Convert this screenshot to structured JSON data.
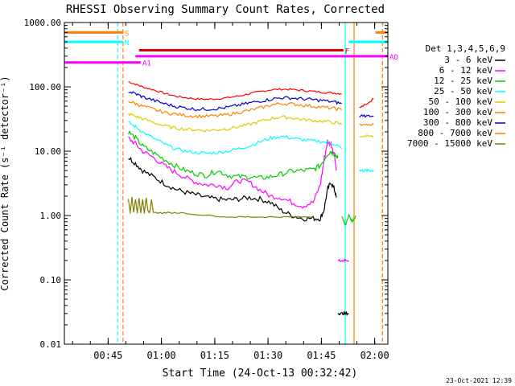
{
  "chart_data": {
    "type": "line",
    "title": "RHESSI Observing Summary Count Rates, Corrected",
    "xlabel": "Start Time (24-Oct-13 00:32:42)",
    "ylabel": "Corrected Count Rate (s⁻¹ detector⁻¹)",
    "yscale": "log",
    "ylim": [
      0.01,
      1000
    ],
    "xlim_minutes": [
      0,
      91
    ],
    "xticks": [
      {
        "label": "00:45",
        "minutes": 12.3
      },
      {
        "label": "01:00",
        "minutes": 27.3
      },
      {
        "label": "01:15",
        "minutes": 42.3
      },
      {
        "label": "01:30",
        "minutes": 57.3
      },
      {
        "label": "01:45",
        "minutes": 72.3
      },
      {
        "label": "02:00",
        "minutes": 87.3
      }
    ],
    "yticks": [
      {
        "label": "0.01",
        "value": 0.01
      },
      {
        "label": "0.10",
        "value": 0.1
      },
      {
        "label": "1.00",
        "value": 1
      },
      {
        "label": "10.00",
        "value": 10
      },
      {
        "label": "100.00",
        "value": 100
      },
      {
        "label": "1000.00",
        "value": 1000
      }
    ],
    "legend_title": "Det 1,3,4,5,6,9",
    "legend_placement": "right",
    "series": [
      {
        "name": "3 - 6 keV",
        "color": "#000000",
        "x": [
          18,
          20,
          22,
          25,
          28,
          31,
          34,
          37,
          40,
          43,
          46,
          49,
          52,
          55,
          58,
          61,
          64,
          67,
          70,
          72,
          73,
          74,
          75,
          76,
          76.5
        ],
        "y": [
          8.0,
          6.5,
          5.0,
          4.0,
          3.2,
          2.6,
          2.3,
          2.1,
          1.9,
          1.8,
          1.75,
          1.8,
          1.9,
          1.8,
          1.6,
          1.2,
          1.0,
          0.9,
          0.9,
          0.9,
          1.2,
          2.5,
          3.3,
          2.5,
          1.9
        ]
      },
      {
        "name": "6 - 12 keV",
        "color": "#ff00ff",
        "x": [
          18,
          20,
          22,
          25,
          28,
          31,
          34,
          37,
          40,
          43,
          46,
          49,
          52,
          55,
          58,
          61,
          64,
          67,
          70,
          72,
          73,
          74,
          75,
          76,
          76.5
        ],
        "y": [
          16,
          13,
          10,
          8.0,
          6.0,
          4.8,
          3.9,
          3.3,
          3.0,
          3.0,
          2.7,
          3.5,
          3.3,
          2.5,
          2.0,
          1.9,
          1.6,
          1.4,
          1.6,
          3.0,
          7.0,
          14,
          13,
          9,
          5
        ]
      },
      {
        "name": "12 - 25 keV",
        "color": "#00cc00",
        "x": [
          18,
          20,
          22,
          25,
          28,
          31,
          34,
          37,
          40,
          43,
          46,
          49,
          52,
          55,
          58,
          61,
          64,
          67,
          70,
          72,
          74,
          75,
          76,
          77
        ],
        "y": [
          20,
          16,
          12,
          9.5,
          7.5,
          6.0,
          5.0,
          4.5,
          4.2,
          5.0,
          4.2,
          4.0,
          4.0,
          3.8,
          4.0,
          4.4,
          4.9,
          5.0,
          5.2,
          6.0,
          9.0,
          10,
          9,
          8
        ]
      },
      {
        "name": "25 - 50 keV",
        "color": "#00ffff",
        "x": [
          18,
          20,
          22,
          25,
          28,
          31,
          34,
          37,
          40,
          43,
          46,
          49,
          52,
          55,
          58,
          61,
          64,
          67,
          70,
          73,
          76,
          78
        ],
        "y": [
          28,
          24,
          20,
          16,
          13,
          11,
          10,
          9.5,
          9.3,
          9.5,
          10,
          11,
          12,
          14,
          16,
          17,
          16,
          15,
          14.5,
          14,
          13,
          11
        ]
      },
      {
        "name": "50 - 100 keV",
        "color": "#ddcc00",
        "x": [
          18,
          20,
          22,
          25,
          28,
          31,
          34,
          37,
          40,
          43,
          46,
          49,
          52,
          55,
          58,
          61,
          64,
          67,
          70,
          73,
          76,
          78
        ],
        "y": [
          38,
          35,
          32,
          28,
          25,
          23,
          22,
          21.5,
          21,
          21.5,
          22.5,
          24,
          26,
          29,
          32,
          34,
          33,
          31,
          30,
          29,
          28,
          26
        ]
      },
      {
        "name": "100 - 300 keV",
        "color": "#ff8000",
        "x": [
          18,
          20,
          22,
          25,
          28,
          31,
          34,
          37,
          40,
          43,
          46,
          49,
          52,
          55,
          58,
          61,
          64,
          67,
          70,
          73,
          76,
          78
        ],
        "y": [
          60,
          55,
          50,
          45,
          40,
          38,
          36,
          35,
          35,
          35.5,
          37,
          40,
          43,
          47,
          52,
          55,
          54,
          52,
          50,
          48,
          46,
          44
        ]
      },
      {
        "name": "300 - 800 keV",
        "color": "#0000cc",
        "x": [
          18,
          20,
          22,
          25,
          28,
          31,
          34,
          37,
          40,
          43,
          46,
          49,
          52,
          55,
          58,
          61,
          64,
          67,
          70,
          73,
          76,
          78
        ],
        "y": [
          85,
          78,
          70,
          62,
          55,
          50,
          47,
          45,
          45,
          46,
          48,
          52,
          56,
          60,
          64,
          68,
          67,
          65,
          63,
          61,
          58,
          55
        ]
      },
      {
        "name": "800 - 7000 keV",
        "color": "#ff8000",
        "x": [],
        "y": []
      },
      {
        "name": "7000 - 15000 keV",
        "color": "#808000",
        "x": [
          18,
          18.5,
          19,
          19.5,
          20,
          20.5,
          21,
          21.5,
          22,
          22.5,
          23,
          23.5,
          24,
          24.5,
          25,
          27,
          29,
          33,
          45,
          50,
          55,
          60,
          65,
          70
        ],
        "y": [
          1.8,
          1.1,
          1.9,
          1.1,
          1.8,
          1.1,
          1.9,
          1.1,
          1.8,
          1.1,
          1.9,
          1.2,
          1.1,
          1.8,
          1.1,
          1.1,
          1.1,
          1.1,
          0.95,
          0.95,
          0.95,
          0.95,
          0.95,
          0.95
        ]
      }
    ],
    "extra_line": {
      "color": "#ff0000",
      "x": [
        18,
        20,
        22,
        25,
        28,
        31,
        34,
        37,
        40,
        43,
        46,
        49,
        52,
        55,
        58,
        61,
        64,
        67,
        70,
        73,
        76,
        78
      ],
      "y": [
        120,
        110,
        100,
        90,
        80,
        72,
        68,
        65,
        64,
        65,
        68,
        72,
        78,
        84,
        90,
        92,
        91,
        88,
        85,
        82,
        80,
        78
      ]
    },
    "after_drop": {
      "black": {
        "x": [
          77,
          78,
          79,
          80
        ],
        "y": [
          0.03,
          0.03,
          0.03,
          0.03
        ]
      },
      "magenta": {
        "x": [
          77,
          78,
          79,
          80
        ],
        "y": [
          0.2,
          0.2,
          0.2,
          0.2
        ]
      },
      "green": {
        "x": [
          78,
          79,
          80,
          81,
          82
        ],
        "y": [
          1.0,
          0.7,
          1.0,
          0.8,
          1.0
        ]
      },
      "cyan": {
        "x": [
          83,
          84,
          85,
          86,
          87
        ],
        "y": [
          5,
          5,
          5,
          5,
          5
        ]
      },
      "yellow": {
        "x": [
          83,
          85,
          87
        ],
        "y": [
          17,
          17,
          17
        ]
      },
      "orange": {
        "x": [
          83,
          85,
          87
        ],
        "y": [
          26,
          26,
          26
        ]
      },
      "blue": {
        "x": [
          83,
          85,
          87
        ],
        "y": [
          35,
          35,
          35
        ]
      },
      "red": {
        "x": [
          83,
          85,
          87
        ],
        "y": [
          48,
          55,
          65
        ]
      }
    },
    "state_bars": [
      {
        "label": "S",
        "color": "#ff8000",
        "y": 700,
        "segments": [
          [
            0,
            16.5
          ],
          [
            87.5,
            91
          ]
        ]
      },
      {
        "label": "N",
        "color": "#00ffff",
        "y": 500,
        "segments": [
          [
            0,
            16.5
          ],
          [
            80,
            91
          ]
        ]
      },
      {
        "label": "F",
        "color": "#dd0000",
        "y": 370,
        "segments": [
          [
            21,
            78.5
          ]
        ]
      },
      {
        "label": "AO",
        "color": "#ff00ff",
        "y": 300,
        "segments": [
          [
            20,
            91
          ]
        ]
      },
      {
        "label": "A1",
        "color": "#ff00ff",
        "y": 240,
        "segments": [
          [
            0,
            21.5
          ]
        ]
      }
    ],
    "vlines": [
      {
        "color": "#00ffff",
        "x": 0,
        "style": "solid"
      },
      {
        "color": "#ff8000",
        "x": 16.5,
        "style": "dash"
      },
      {
        "color": "#00ffff",
        "x": 15.0,
        "style": "dash"
      },
      {
        "color": "#00ffff",
        "x": 79.0,
        "style": "solid"
      },
      {
        "color": "#ff8000",
        "x": 81.5,
        "style": "solid"
      },
      {
        "color": "#ff8000",
        "x": 89.5,
        "style": "dash"
      }
    ]
  },
  "footer": {
    "timestamp": "23-Oct-2021 12:39"
  }
}
